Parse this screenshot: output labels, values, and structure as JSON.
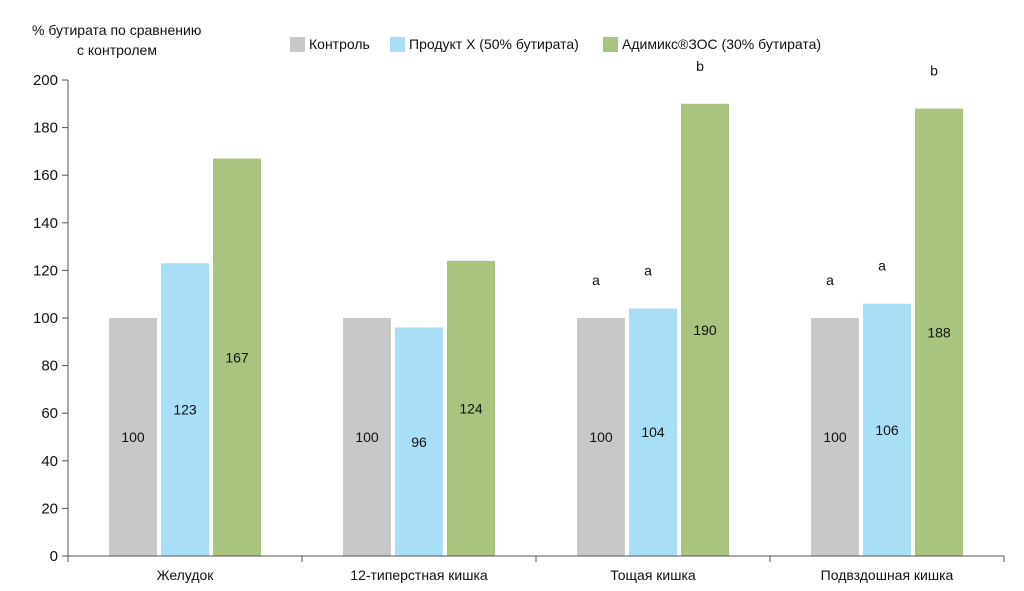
{
  "chart_data": {
    "type": "bar",
    "ylabel_lines": [
      "% бутирата по сравнению",
      "с контролем"
    ],
    "xlabel": "",
    "ylim": [
      0,
      200
    ],
    "yticks": [
      0,
      20,
      40,
      60,
      80,
      100,
      120,
      140,
      160,
      180,
      200
    ],
    "categories": [
      "Желудок",
      "12-типерстная кишка",
      "Тощая кишка",
      "Подвздошная кишка"
    ],
    "legend_position": "top",
    "grid": false,
    "series": [
      {
        "name": "Контроль",
        "color": "#c8c8c8",
        "values": [
          100,
          100,
          100,
          100
        ],
        "value_labels": [
          "100",
          "100",
          "100",
          "100"
        ],
        "sig_labels": [
          "",
          "",
          "a",
          "a"
        ]
      },
      {
        "name": "Продукт X (50% бутирата)",
        "color": "#a8def6",
        "values": [
          123,
          96,
          104,
          106
        ],
        "value_labels": [
          "123",
          "96",
          "104",
          "106"
        ],
        "sig_labels": [
          "",
          "",
          "a",
          "a"
        ]
      },
      {
        "name": "Адимикс®ЗОС (30% бутирата)",
        "color": "#a9c47e",
        "values": [
          167,
          124,
          190,
          188
        ],
        "value_labels": [
          "167",
          "124",
          "190",
          "188"
        ],
        "sig_labels": [
          "",
          "",
          "b",
          "b"
        ]
      }
    ]
  }
}
